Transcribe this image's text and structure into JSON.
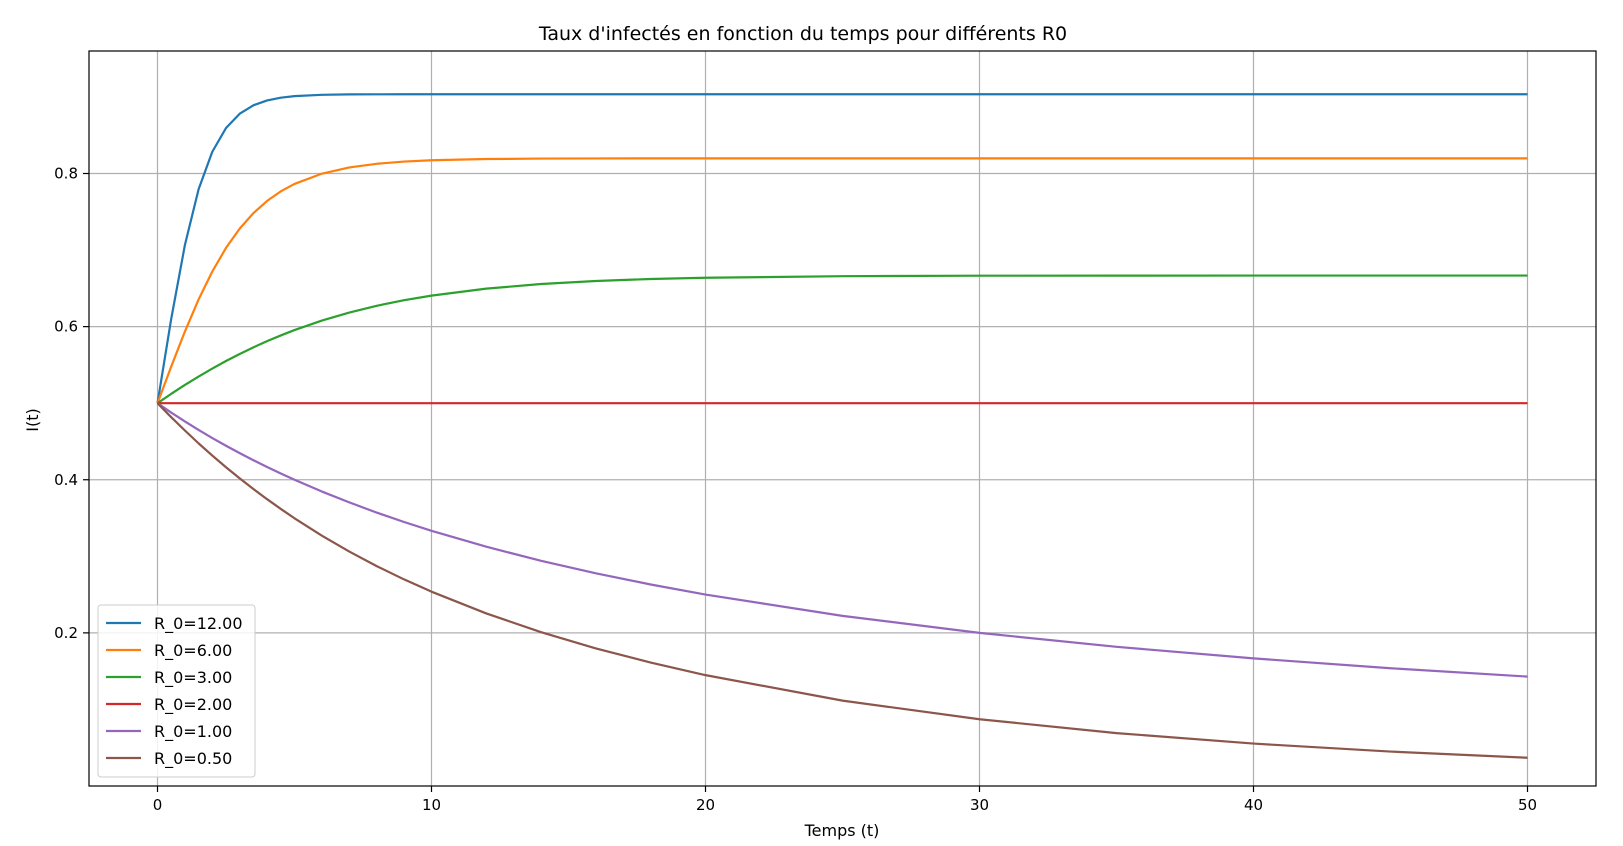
{
  "chart_data": {
    "type": "line",
    "title": "Taux d'infectés en fonction du temps pour différents R0",
    "xlabel": "Temps (t)",
    "ylabel": "I(t)",
    "xlim": [
      -2.5,
      52.5
    ],
    "ylim": [
      0.0,
      0.96
    ],
    "xticks": [
      0,
      10,
      20,
      30,
      40,
      50
    ],
    "yticks": [
      0.2,
      0.4,
      0.6,
      0.8
    ],
    "xtick_labels": [
      "0",
      "10",
      "20",
      "30",
      "40",
      "50"
    ],
    "ytick_labels": [
      "0.2",
      "0.4",
      "0.6",
      "0.8"
    ],
    "grid": true,
    "legend_position": "lower-left",
    "x": [
      0,
      0.5,
      1,
      1.5,
      2,
      2.5,
      3,
      3.5,
      4,
      4.5,
      5,
      6,
      7,
      8,
      9,
      10,
      12,
      14,
      16,
      18,
      20,
      25,
      30,
      35,
      40,
      45,
      50
    ],
    "series": [
      {
        "name": "R_0=12.00",
        "color": "#1f77b4",
        "values": [
          0.5,
          0.6101,
          0.7066,
          0.7794,
          0.8284,
          0.8594,
          0.8781,
          0.8891,
          0.8954,
          0.899,
          0.9011,
          0.9028,
          0.9033,
          0.9034,
          0.9035,
          0.9035,
          0.9035,
          0.9035,
          0.9035,
          0.9035,
          0.9035,
          0.9035,
          0.9035,
          0.9035,
          0.9035,
          0.9035,
          0.9035
        ]
      },
      {
        "name": "R_0=6.00",
        "color": "#ff7f0e",
        "values": [
          0.5,
          0.5477,
          0.5936,
          0.6355,
          0.672,
          0.7028,
          0.728,
          0.7482,
          0.7642,
          0.7767,
          0.7864,
          0.7998,
          0.8079,
          0.8127,
          0.8156,
          0.8173,
          0.8189,
          0.8195,
          0.8197,
          0.8198,
          0.8198,
          0.8198,
          0.8198,
          0.8198,
          0.8198,
          0.8198,
          0.8198
        ]
      },
      {
        "name": "R_0=3.00",
        "color": "#2ca02c",
        "values": [
          0.5,
          0.5122,
          0.5238,
          0.5348,
          0.5452,
          0.5551,
          0.5643,
          0.5729,
          0.581,
          0.5885,
          0.5955,
          0.6079,
          0.6184,
          0.6272,
          0.6345,
          0.6405,
          0.6496,
          0.6557,
          0.6596,
          0.6622,
          0.6638,
          0.6659,
          0.6665,
          0.6666,
          0.6667,
          0.6667,
          0.6667
        ]
      },
      {
        "name": "R_0=2.00",
        "color": "#d62728",
        "values": [
          0.5,
          0.5,
          0.5,
          0.5,
          0.5,
          0.5,
          0.5,
          0.5,
          0.5,
          0.5,
          0.5,
          0.5,
          0.5,
          0.5,
          0.5,
          0.5,
          0.5,
          0.5,
          0.5,
          0.5,
          0.5,
          0.5,
          0.5,
          0.5,
          0.5,
          0.5,
          0.5
        ]
      },
      {
        "name": "R_0=1.00",
        "color": "#9467bd",
        "values": [
          0.5,
          0.4878,
          0.4762,
          0.4651,
          0.4545,
          0.4444,
          0.4348,
          0.4255,
          0.4167,
          0.4082,
          0.4,
          0.3846,
          0.3704,
          0.3571,
          0.3448,
          0.3333,
          0.3125,
          0.2941,
          0.2778,
          0.2632,
          0.25,
          0.2222,
          0.2,
          0.1818,
          0.1667,
          0.1538,
          0.1429
        ]
      },
      {
        "name": "R_0=0.50",
        "color": "#8c564b",
        "values": [
          0.5,
          0.4817,
          0.4643,
          0.4475,
          0.4316,
          0.4163,
          0.4018,
          0.3879,
          0.3746,
          0.3619,
          0.3497,
          0.3269,
          0.3062,
          0.2872,
          0.2698,
          0.2538,
          0.2254,
          0.2009,
          0.1797,
          0.1612,
          0.1448,
          0.1115,
          0.0872,
          0.0691,
          0.0554,
          0.045,
          0.0369
        ]
      }
    ]
  }
}
